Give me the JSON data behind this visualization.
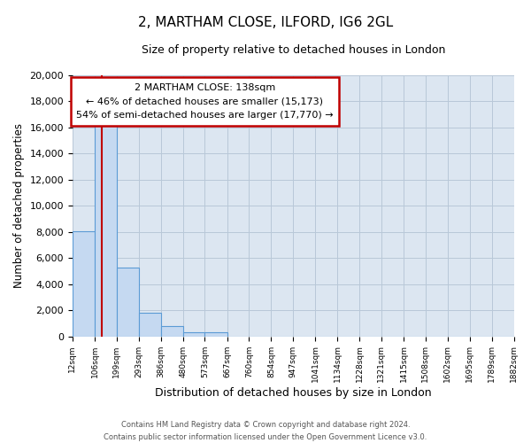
{
  "title": "2, MARTHAM CLOSE, ILFORD, IG6 2GL",
  "subtitle": "Size of property relative to detached houses in London",
  "xlabel": "Distribution of detached houses by size in London",
  "ylabel": "Number of detached properties",
  "bar_values": [
    8050,
    16550,
    5300,
    1800,
    800,
    300,
    300,
    0,
    0,
    0,
    0,
    0,
    0,
    0,
    0,
    0,
    0,
    0,
    0,
    0
  ],
  "bin_edges": [
    12,
    106,
    199,
    293,
    386,
    480,
    573,
    667,
    760,
    854,
    947,
    1041,
    1134,
    1228,
    1321,
    1415,
    1508,
    1602,
    1695,
    1789,
    1882
  ],
  "tick_labels": [
    "12sqm",
    "106sqm",
    "199sqm",
    "293sqm",
    "386sqm",
    "480sqm",
    "573sqm",
    "667sqm",
    "760sqm",
    "854sqm",
    "947sqm",
    "1041sqm",
    "1134sqm",
    "1228sqm",
    "1321sqm",
    "1415sqm",
    "1508sqm",
    "1602sqm",
    "1695sqm",
    "1789sqm",
    "1882sqm"
  ],
  "bar_color": "#c5d9f1",
  "bar_edge_color": "#5b9bd5",
  "fig_bg_color": "#ffffff",
  "plot_bg_color": "#dce6f1",
  "vline_x": 138,
  "vline_color": "#c00000",
  "ylim": [
    0,
    20000
  ],
  "yticks": [
    0,
    2000,
    4000,
    6000,
    8000,
    10000,
    12000,
    14000,
    16000,
    18000,
    20000
  ],
  "annotation_title": "2 MARTHAM CLOSE: 138sqm",
  "annotation_line1": "← 46% of detached houses are smaller (15,173)",
  "annotation_line2": "54% of semi-detached houses are larger (17,770) →",
  "annotation_box_color": "#ffffff",
  "annotation_border_color": "#c00000",
  "grid_color": "#b8c8d8",
  "footer_line1": "Contains HM Land Registry data © Crown copyright and database right 2024.",
  "footer_line2": "Contains public sector information licensed under the Open Government Licence v3.0."
}
